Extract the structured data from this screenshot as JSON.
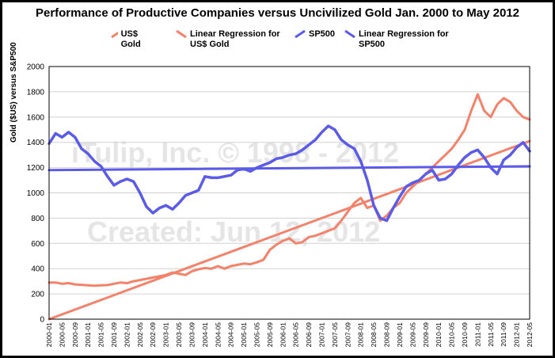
{
  "chart_data": {
    "type": "line",
    "title": "Performance of Productive Companies versus Uncivilized Gold Jan. 2000 to May 2012",
    "ylabel": "Gold ($US) versus S&P500",
    "xlabel": "",
    "ylim": [
      0,
      2000
    ],
    "yticks": [
      0,
      200,
      400,
      600,
      800,
      1000,
      1200,
      1400,
      1600,
      1800,
      2000
    ],
    "grid": true,
    "legend_position": "top",
    "watermark": [
      "iTulip, Inc. © 1998 - 2012",
      "Created: Jun 12, 2012"
    ],
    "x_tick_labels": [
      "2000-01",
      "2000-05",
      "2000-09",
      "2001-01",
      "2001-05",
      "2001-09",
      "2002-01",
      "2002-05",
      "2002-09",
      "2003-01",
      "2003-05",
      "2003-09",
      "2004-01",
      "2004-05",
      "2004-09",
      "2005-01",
      "2005-05",
      "2005-09",
      "2006-01",
      "2006-05",
      "2006-09",
      "2007-01",
      "2007-05",
      "2007-09",
      "2008-01",
      "2008-05",
      "2008-09",
      "2009-01",
      "2009-05",
      "2009-09",
      "2010-01",
      "2010-05",
      "2010-09",
      "2011-01",
      "2011-05",
      "2011-09",
      "2012-01",
      "2012-05"
    ],
    "series": [
      {
        "name": "US$ Gold",
        "color": "#f4826a",
        "x_months": [
          0,
          2,
          4,
          6,
          8,
          10,
          12,
          14,
          16,
          18,
          20,
          22,
          24,
          26,
          28,
          30,
          32,
          34,
          36,
          38,
          40,
          42,
          44,
          46,
          48,
          50,
          52,
          54,
          56,
          58,
          60,
          62,
          64,
          66,
          68,
          70,
          72,
          74,
          76,
          78,
          80,
          82,
          84,
          86,
          88,
          90,
          92,
          94,
          96,
          98,
          100,
          102,
          104,
          106,
          108,
          110,
          112,
          114,
          116,
          118,
          120,
          122,
          124,
          126,
          128,
          130,
          132,
          134,
          136,
          138,
          140,
          142,
          144,
          146,
          148
        ],
        "values": [
          290,
          290,
          280,
          285,
          275,
          272,
          268,
          265,
          268,
          270,
          280,
          290,
          285,
          300,
          310,
          320,
          330,
          340,
          350,
          370,
          360,
          350,
          380,
          395,
          405,
          400,
          420,
          400,
          420,
          430,
          440,
          435,
          450,
          470,
          550,
          590,
          620,
          640,
          600,
          610,
          650,
          660,
          680,
          700,
          720,
          780,
          850,
          920,
          960,
          880,
          900,
          780,
          820,
          880,
          920,
          1000,
          1050,
          1100,
          1150,
          1200,
          1250,
          1300,
          1350,
          1420,
          1500,
          1650,
          1780,
          1650,
          1600,
          1700,
          1750,
          1720,
          1650,
          1600,
          1580
        ]
      },
      {
        "name": "Linear Regression for US$ Gold",
        "color": "#f4826a",
        "x_months": [
          0,
          148
        ],
        "values": [
          0,
          1410
        ]
      },
      {
        "name": "SP500",
        "color": "#5b5bea",
        "x_months": [
          0,
          2,
          4,
          6,
          8,
          10,
          12,
          14,
          16,
          18,
          20,
          22,
          24,
          26,
          28,
          30,
          32,
          34,
          36,
          38,
          40,
          42,
          44,
          46,
          48,
          50,
          52,
          54,
          56,
          58,
          60,
          62,
          64,
          66,
          68,
          70,
          72,
          74,
          76,
          78,
          80,
          82,
          84,
          86,
          88,
          90,
          92,
          94,
          96,
          98,
          100,
          102,
          104,
          106,
          108,
          110,
          112,
          114,
          116,
          118,
          120,
          122,
          124,
          126,
          128,
          130,
          132,
          134,
          136,
          138,
          140,
          142,
          144,
          146,
          148
        ],
        "values": [
          1390,
          1470,
          1440,
          1480,
          1440,
          1350,
          1310,
          1250,
          1210,
          1130,
          1060,
          1090,
          1110,
          1090,
          1000,
          890,
          840,
          880,
          900,
          870,
          920,
          980,
          1000,
          1020,
          1130,
          1120,
          1120,
          1130,
          1140,
          1180,
          1190,
          1170,
          1200,
          1220,
          1240,
          1270,
          1280,
          1300,
          1310,
          1340,
          1380,
          1420,
          1480,
          1530,
          1500,
          1420,
          1380,
          1350,
          1250,
          1100,
          900,
          800,
          780,
          880,
          970,
          1050,
          1080,
          1100,
          1150,
          1180,
          1100,
          1110,
          1150,
          1220,
          1280,
          1320,
          1340,
          1280,
          1200,
          1150,
          1260,
          1300,
          1360,
          1400,
          1330
        ]
      },
      {
        "name": "Linear Regression for SP500",
        "color": "#5b5bea",
        "x_months": [
          0,
          148
        ],
        "values": [
          1180,
          1210
        ]
      }
    ]
  }
}
